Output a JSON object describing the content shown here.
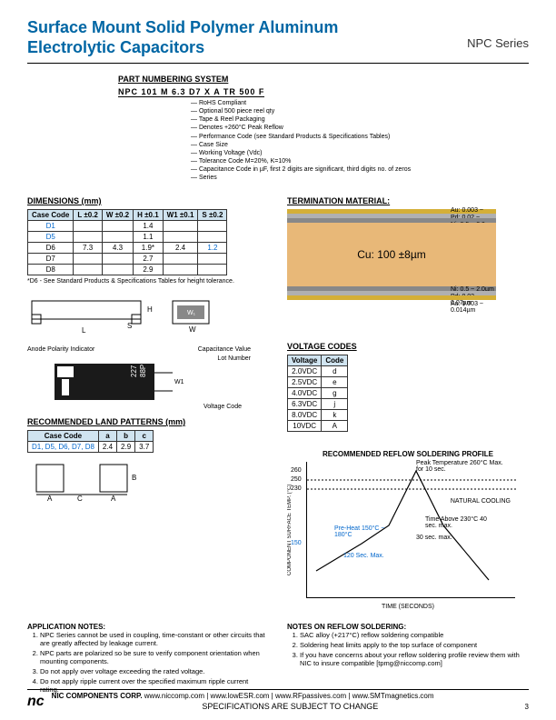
{
  "header": {
    "title1": "Surface Mount Solid Polymer Aluminum",
    "title2": "Electrolytic Capacitors",
    "series": "NPC Series"
  },
  "partNumbering": {
    "title": "PART NUMBERING SYSTEM",
    "parts": "NPC  101  M  6.3  D7  X  A  TR 500 F",
    "descriptions": [
      "RoHS Compliant",
      "Optional 500 piece reel qty",
      "Tape & Reel Packaging",
      "Denotes +260°C Peak Reflow",
      "Performance Code (see Standard Products & Specifications Tables)",
      "Case Size",
      "Working Voltage (Vdc)",
      "Tolerance Code M=20%, K=10%",
      "Capacitance Code in µF, first 2 digits are significant, third digits no. of zeros",
      "Series"
    ]
  },
  "dimensions": {
    "title": "DIMENSIONS (mm)",
    "headers": [
      "Case Code",
      "L ±0.2",
      "W ±0.2",
      "H ±0.1",
      "W1 ±0.1",
      "S ±0.2"
    ],
    "rows": [
      [
        "D1",
        "",
        "",
        "1.4",
        "",
        ""
      ],
      [
        "D5",
        "",
        "",
        "1.1",
        "",
        ""
      ],
      [
        "D6",
        "7.3",
        "4.3",
        "1.9*",
        "2.4",
        "1.2"
      ],
      [
        "D7",
        "",
        "",
        "2.7",
        "",
        ""
      ],
      [
        "D8",
        "",
        "",
        "2.9",
        "",
        ""
      ]
    ],
    "note": "*D6 - See Standard Products & Specifications Tables for height tolerance.",
    "blueRows": [
      0,
      1
    ],
    "blueCols": [
      5
    ]
  },
  "termination": {
    "title": "TERMINATION MATERIAL:",
    "main": "Cu: 100 ±8µm",
    "layers": [
      {
        "label": "Au: 0.003 ~ 0.014µm",
        "color": "#d4af37"
      },
      {
        "label": "Pd: 0.02 ~ 0.07µm",
        "color": "#b0b0b0"
      },
      {
        "label": "Ni: 0.5 ~ 2.0µm",
        "color": "#888"
      },
      {
        "label": "Ni: 0.5 ~ 2.0µm",
        "color": "#888"
      },
      {
        "label": "Pd: 0.02 ~ 0.07µm",
        "color": "#b0b0b0"
      },
      {
        "label": "Au: 0.003 ~ 0.014µm",
        "color": "#d4af37"
      }
    ],
    "cuColor": "#e8b878"
  },
  "voltageCodes": {
    "title": "VOLTAGE CODES",
    "headers": [
      "Voltage",
      "Code"
    ],
    "rows": [
      [
        "2.0VDC",
        "d"
      ],
      [
        "2.5VDC",
        "e"
      ],
      [
        "4.0VDC",
        "g"
      ],
      [
        "6.3VDC",
        "j"
      ],
      [
        "8.0VDC",
        "k"
      ],
      [
        "10VDC",
        "A"
      ]
    ]
  },
  "landPatterns": {
    "title": "RECOMMENDED LAND PATTERNS (mm)",
    "headers": [
      "Case Code",
      "a",
      "b",
      "c"
    ],
    "row": [
      "D1, D5, D6, D7, D8",
      "2.4",
      "2.9",
      "3.7"
    ]
  },
  "compLabels": {
    "anode": "Anode Polarity Indicator",
    "cap": "Capacitance Value",
    "lot": "Lot Number",
    "vcode": "Voltage Code",
    "w1": "W1"
  },
  "reflow": {
    "title": "RECOMMENDED REFLOW SOLDERING PROFILE",
    "ylabel": "COMPONENT SURFACE TEMP. (°C)",
    "xlabel": "TIME (SECONDS)",
    "yticks": [
      "260",
      "250",
      "230",
      "150"
    ],
    "annotations": {
      "peak": "Peak Temperature 260°C Max. for 10 sec.",
      "natural": "NATURAL COOLING",
      "above230": "Time Above 230°C 40 sec. max.",
      "thirtysec": "30 sec. max.",
      "preheat": "Pre-Heat 150°C ~ 180°C",
      "sixty": "120 Sec. Max."
    }
  },
  "appNotes": {
    "title": "APPLICATION NOTES:",
    "items": [
      "NPC Series cannot be used in coupling, time-constant or other circuits that are greatly affected by leakage current.",
      "NPC parts are polarized so be sure to verify component orientation when mounting components.",
      "Do not apply over voltage exceeding the rated voltage.",
      "Do not apply ripple current over the specified maximum ripple current rating."
    ]
  },
  "reflowNotes": {
    "title": "NOTES ON REFLOW SOLDERING:",
    "items": [
      "SAC alloy (+217°C) reflow soldering compatible",
      "Soldering heat limits apply to the top surface of component",
      "If you have concerns about your reflow soldering profile review them with NIC to insure compatible [tpmg@niccomp.com]"
    ]
  },
  "footer": {
    "corp": "NIC COMPONENTS CORP.",
    "links": "www.niccomp.com  |  www.lowESR.com  |  www.RFpassives.com  |  www.SMTmagnetics.com",
    "spec": "SPECIFICATIONS ARE SUBJECT TO CHANGE",
    "page": "3"
  }
}
